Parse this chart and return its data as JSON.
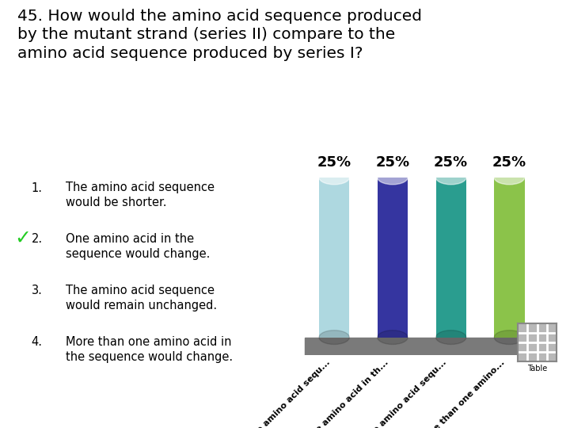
{
  "title": "45. How would the amino acid sequence produced\nby the mutant strand (series II) compare to the\namino acid sequence produced by series I?",
  "title_fontsize": 14.5,
  "answer_items": [
    {
      "num": "1.",
      "text": "The amino acid sequence\nwould be shorter.",
      "check": false
    },
    {
      "num": "2.",
      "text": "One amino acid in the\nsequence would change.",
      "check": true
    },
    {
      "num": "3.",
      "text": "The amino acid sequence\nwould remain unchanged.",
      "check": false
    },
    {
      "num": "4.",
      "text": "More than one amino acid in\nthe sequence would change.",
      "check": false
    }
  ],
  "bar_values": [
    25,
    25,
    25,
    25
  ],
  "bar_colors": [
    "#aed8e0",
    "#3535a0",
    "#2a9d8f",
    "#8bc34a"
  ],
  "bar_labels": [
    "The amino acid sequ...",
    "One amino acid in th...",
    "The amino acid sequ...",
    "More than one amino..."
  ],
  "bar_value_labels": [
    "25%",
    "25%",
    "25%",
    "25%"
  ],
  "bar_value_fontsize": 13,
  "background_color": "#ffffff",
  "floor_color": "#7a7a7a",
  "check_color": "#22cc22"
}
